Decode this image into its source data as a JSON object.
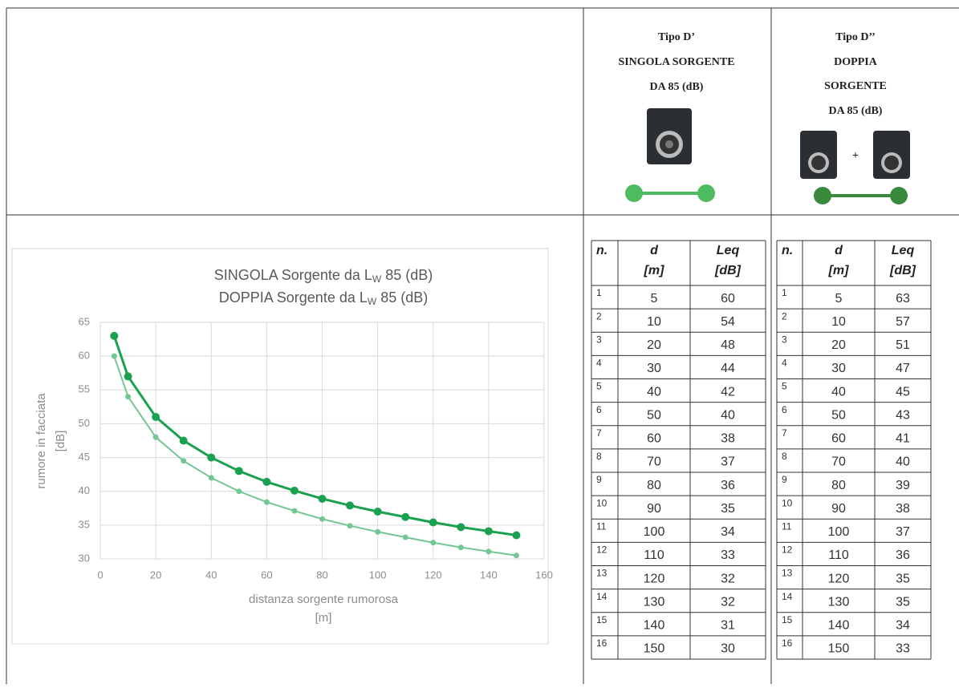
{
  "header": {
    "single": [
      "Tipo D’",
      "SINGOLA SORGENTE",
      "DA 85 (dB)"
    ],
    "double": [
      "Tipo D’’",
      "DOPPIA",
      "SORGENTE",
      "DA 85 (dB)"
    ],
    "plus": "+"
  },
  "chart_data": {
    "type": "line",
    "title_lines": [
      [
        "SINGOLA Sorgente da L",
        "W",
        "85 (dB)"
      ],
      [
        "DOPPIA Sorgente da L",
        "W",
        "85 (dB)"
      ]
    ],
    "y_label": [
      "rumore in facciata",
      "[dB]"
    ],
    "x_label": [
      "distanza sorgente rumorosa",
      "[m]"
    ],
    "x": [
      5,
      10,
      20,
      30,
      40,
      50,
      60,
      70,
      80,
      90,
      100,
      110,
      120,
      130,
      140,
      150
    ],
    "series": [
      {
        "color": "#1aa150",
        "values": [
          63,
          57,
          51,
          47.5,
          45,
          43,
          41.4,
          40.1,
          38.9,
          37.9,
          37,
          36.2,
          35.4,
          34.7,
          34.1,
          33.5
        ]
      },
      {
        "color": "#74c795",
        "values": [
          60,
          54,
          48,
          44.5,
          42,
          40,
          38.4,
          37.1,
          35.9,
          34.9,
          34,
          33.2,
          32.4,
          31.7,
          31.1,
          30.5
        ]
      }
    ],
    "xlim": [
      0,
      160
    ],
    "xticks": [
      0,
      20,
      40,
      60,
      80,
      100,
      120,
      140,
      160
    ],
    "ylim": [
      30,
      65
    ],
    "yticks": [
      30,
      35,
      40,
      45,
      50,
      55,
      60,
      65
    ],
    "grid": true
  },
  "tables": [
    {
      "headers": [
        [
          "n."
        ],
        [
          "d",
          "[m]"
        ],
        [
          "Leq",
          "[dB]"
        ]
      ],
      "rows": [
        [
          1,
          5,
          60
        ],
        [
          2,
          10,
          54
        ],
        [
          3,
          20,
          48
        ],
        [
          4,
          30,
          44
        ],
        [
          5,
          40,
          42
        ],
        [
          6,
          50,
          40
        ],
        [
          7,
          60,
          38
        ],
        [
          8,
          70,
          37
        ],
        [
          9,
          80,
          36
        ],
        [
          10,
          90,
          35
        ],
        [
          11,
          100,
          34
        ],
        [
          12,
          110,
          33
        ],
        [
          13,
          120,
          32
        ],
        [
          14,
          130,
          32
        ],
        [
          15,
          140,
          31
        ],
        [
          16,
          150,
          30
        ]
      ]
    },
    {
      "headers": [
        [
          "n."
        ],
        [
          "d",
          "[m]"
        ],
        [
          "Leq",
          "[dB]"
        ]
      ],
      "rows": [
        [
          1,
          5,
          63
        ],
        [
          2,
          10,
          57
        ],
        [
          3,
          20,
          51
        ],
        [
          4,
          30,
          47
        ],
        [
          5,
          40,
          45
        ],
        [
          6,
          50,
          43
        ],
        [
          7,
          60,
          41
        ],
        [
          8,
          70,
          40
        ],
        [
          9,
          80,
          39
        ],
        [
          10,
          90,
          38
        ],
        [
          11,
          100,
          37
        ],
        [
          12,
          110,
          36
        ],
        [
          13,
          120,
          35
        ],
        [
          14,
          130,
          35
        ],
        [
          15,
          140,
          34
        ],
        [
          16,
          150,
          33
        ]
      ]
    }
  ]
}
